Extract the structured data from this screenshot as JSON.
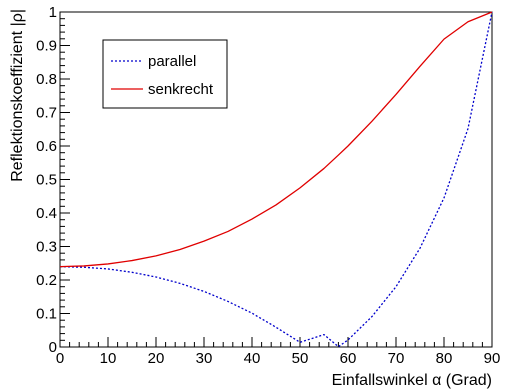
{
  "chart_data": {
    "type": "line",
    "title": "",
    "xlabel": "Einfallswinkel α (Grad)",
    "ylabel": "Reflektionskoeffizient |ρ|",
    "xlim": [
      0,
      90
    ],
    "ylim": [
      0,
      1
    ],
    "x_ticks": [
      0,
      10,
      20,
      30,
      40,
      50,
      60,
      70,
      80,
      90
    ],
    "y_ticks": [
      0,
      0.1,
      0.2,
      0.3,
      0.4,
      0.5,
      0.6,
      0.7,
      0.8,
      0.9,
      1
    ],
    "x_tick_labels": [
      "0",
      "10",
      "20",
      "30",
      "40",
      "50",
      "60",
      "70",
      "80",
      "90"
    ],
    "y_tick_labels": [
      "0",
      "0.1",
      "0.2",
      "0.3",
      "0.4",
      "0.5",
      "0.6",
      "0.7",
      "0.8",
      "0.9",
      "1"
    ],
    "grid": false,
    "legend_position": "top-left",
    "x": [
      0,
      5,
      10,
      15,
      20,
      25,
      30,
      35,
      40,
      45,
      50,
      55,
      58,
      60,
      65,
      70,
      75,
      80,
      85,
      90
    ],
    "series": [
      {
        "name": "parallel",
        "color": "#0000cc",
        "style": "dotted",
        "values": [
          0.24,
          0.238,
          0.233,
          0.223,
          0.209,
          0.19,
          0.166,
          0.136,
          0.101,
          0.059,
          0.014,
          0.037,
          0.001,
          0.021,
          0.091,
          0.18,
          0.295,
          0.445,
          0.652,
          1.0
        ]
      },
      {
        "name": "senkrecht",
        "color": "#e00000",
        "style": "solid",
        "values": [
          0.24,
          0.242,
          0.248,
          0.258,
          0.272,
          0.291,
          0.316,
          0.345,
          0.382,
          0.424,
          0.475,
          0.533,
          0.573,
          0.6,
          0.674,
          0.754,
          0.838,
          0.919,
          0.971,
          1.0
        ]
      }
    ]
  }
}
